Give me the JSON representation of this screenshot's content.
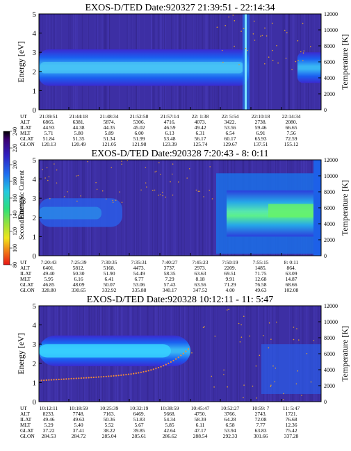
{
  "chart_data": [
    {
      "type": "heatmap",
      "title": "EXOS-D/TED   Date:920327  21:39:51 - 22:14:34",
      "ylabel": "Energy [eV]",
      "y2label": "Temperature [K]",
      "ylim": [
        0,
        5
      ],
      "y2lim": [
        0,
        12000
      ],
      "yticks": [
        "0",
        "1",
        "2",
        "3",
        "4",
        "5"
      ],
      "y2ticks": [
        "0",
        "2000",
        "4000",
        "6000",
        "8000",
        "10000",
        "12000"
      ],
      "band_center_ev": 2.2,
      "table_rows": [
        {
          "label": "UT",
          "values": [
            "21:39:51",
            "21:44:18",
            "21:48:34",
            "21:52:58",
            "21:57:14",
            "22: 1:38",
            "22: 5:54",
            "22:10:18",
            "22:14:34"
          ]
        },
        {
          "label": "ALT",
          "values": [
            "6865.",
            "6381.",
            "5874.",
            "5306.",
            "4716.",
            "4073.",
            "3422.",
            "2738.",
            "2080."
          ]
        },
        {
          "label": "ILAT",
          "values": [
            "44.93",
            "44.38",
            "44.35",
            "45.02",
            "46.59",
            "49.42",
            "53.56",
            "59.46",
            "66.65"
          ]
        },
        {
          "label": "MLT",
          "values": [
            "5.71",
            "5.80",
            "5.89",
            "6.00",
            "6.13",
            "6.31",
            "6.54",
            "6.91",
            "7.56"
          ]
        },
        {
          "label": "GLAT",
          "values": [
            "51.84",
            "51.35",
            "51.34",
            "51.99",
            "53.48",
            "56.17",
            "60.17",
            "65.93",
            "72.59"
          ]
        },
        {
          "label": "GLON",
          "values": [
            "120.13",
            "120.49",
            "121.05",
            "121.98",
            "123.39",
            "125.74",
            "129.67",
            "137.51",
            "155.12"
          ]
        }
      ]
    },
    {
      "type": "heatmap",
      "title": "EXOS-D/TED   Date:920328  7:20:43 - 8: 0:11",
      "ylabel": "Energy",
      "y2label": "Temperature [K]",
      "ylim": [
        0,
        5
      ],
      "y2lim": [
        0,
        12000
      ],
      "yticks": [
        "0",
        "1",
        "2",
        "3",
        "4",
        "5"
      ],
      "y2ticks": [
        "0",
        "2000",
        "4000",
        "6000",
        "8000",
        "10000",
        "12000"
      ],
      "colorbar": {
        "label": "Second Harmonic Current",
        "ticks": [
          "80",
          "100",
          "120",
          "140",
          "160",
          "180",
          "200",
          "220",
          "240"
        ],
        "range": [
          80,
          240
        ]
      },
      "table_rows": [
        {
          "label": "UT",
          "values": [
            "7:20:43",
            "7:25:39",
            "7:30:35",
            "7:35:31",
            "7:40:27",
            "7:45:23",
            "7:50:19",
            "7:55:15",
            "8: 0:11"
          ]
        },
        {
          "label": "ALT",
          "values": [
            "6401.",
            "5812.",
            "5168.",
            "4473.",
            "3737.",
            "2973.",
            "2209.",
            "1485.",
            "864."
          ]
        },
        {
          "label": "ILAT",
          "values": [
            "49.40",
            "50.30",
            "51.90",
            "54.49",
            "58.35",
            "63.63",
            "69.51",
            "71.75",
            "63.09"
          ]
        },
        {
          "label": "MLT",
          "values": [
            "5.95",
            "6.16",
            "6.41",
            "6.77",
            "7.29",
            "8.18",
            "9.91",
            "12.68",
            "14.87"
          ]
        },
        {
          "label": "GLAT",
          "values": [
            "46.85",
            "48.09",
            "50.07",
            "53.06",
            "57.43",
            "63.56",
            "71.29",
            "76.58",
            "68.66"
          ]
        },
        {
          "label": "GLON",
          "values": [
            "328.80",
            "330.65",
            "332.92",
            "335.88",
            "340.17",
            "347.52",
            "4.00",
            "49.63",
            "102.08"
          ]
        }
      ]
    },
    {
      "type": "heatmap",
      "title": "EXOS-D/TED   Date:920328  10:12:11 - 11: 5:47",
      "ylabel": "Energy [eV]",
      "y2label": "Temperature [K]",
      "ylim": [
        0,
        5
      ],
      "y2lim": [
        0,
        12000
      ],
      "yticks": [
        "0",
        "1",
        "2",
        "3",
        "4",
        "5"
      ],
      "y2ticks": [
        "0",
        "2000",
        "4000",
        "6000",
        "8000",
        "10000",
        "12000"
      ],
      "band_center_ev": 2.6,
      "table_rows": [
        {
          "label": "UT",
          "values": [
            "10:12:11",
            "10:18:59",
            "10:25:39",
            "10:32:19",
            "10:38:59",
            "10:45:47",
            "10:52:27",
            "10:59: 7",
            "11: 5:47"
          ]
        },
        {
          "label": "ALT",
          "values": [
            "8233.",
            "7748.",
            "7163.",
            "6469.",
            "5668.",
            "4750.",
            "3766.",
            "2743.",
            "1721."
          ]
        },
        {
          "label": "ILAT",
          "values": [
            "49.46",
            "49.63",
            "50.36",
            "51.83",
            "54.34",
            "58.39",
            "64.28",
            "72.08",
            "76.68"
          ]
        },
        {
          "label": "MLT",
          "values": [
            "5.29",
            "5.40",
            "5.52",
            "5.67",
            "5.85",
            "6.11",
            "6.58",
            "7.77",
            "12.36"
          ]
        },
        {
          "label": "GLAT",
          "values": [
            "37.22",
            "37.41",
            "38.22",
            "39.85",
            "42.64",
            "47.17",
            "53.94",
            "63.83",
            "75.42"
          ]
        },
        {
          "label": "GLON",
          "values": [
            "284.53",
            "284.72",
            "285.04",
            "285.61",
            "286.62",
            "288.54",
            "292.33",
            "301.66",
            "337.28"
          ]
        }
      ]
    }
  ]
}
